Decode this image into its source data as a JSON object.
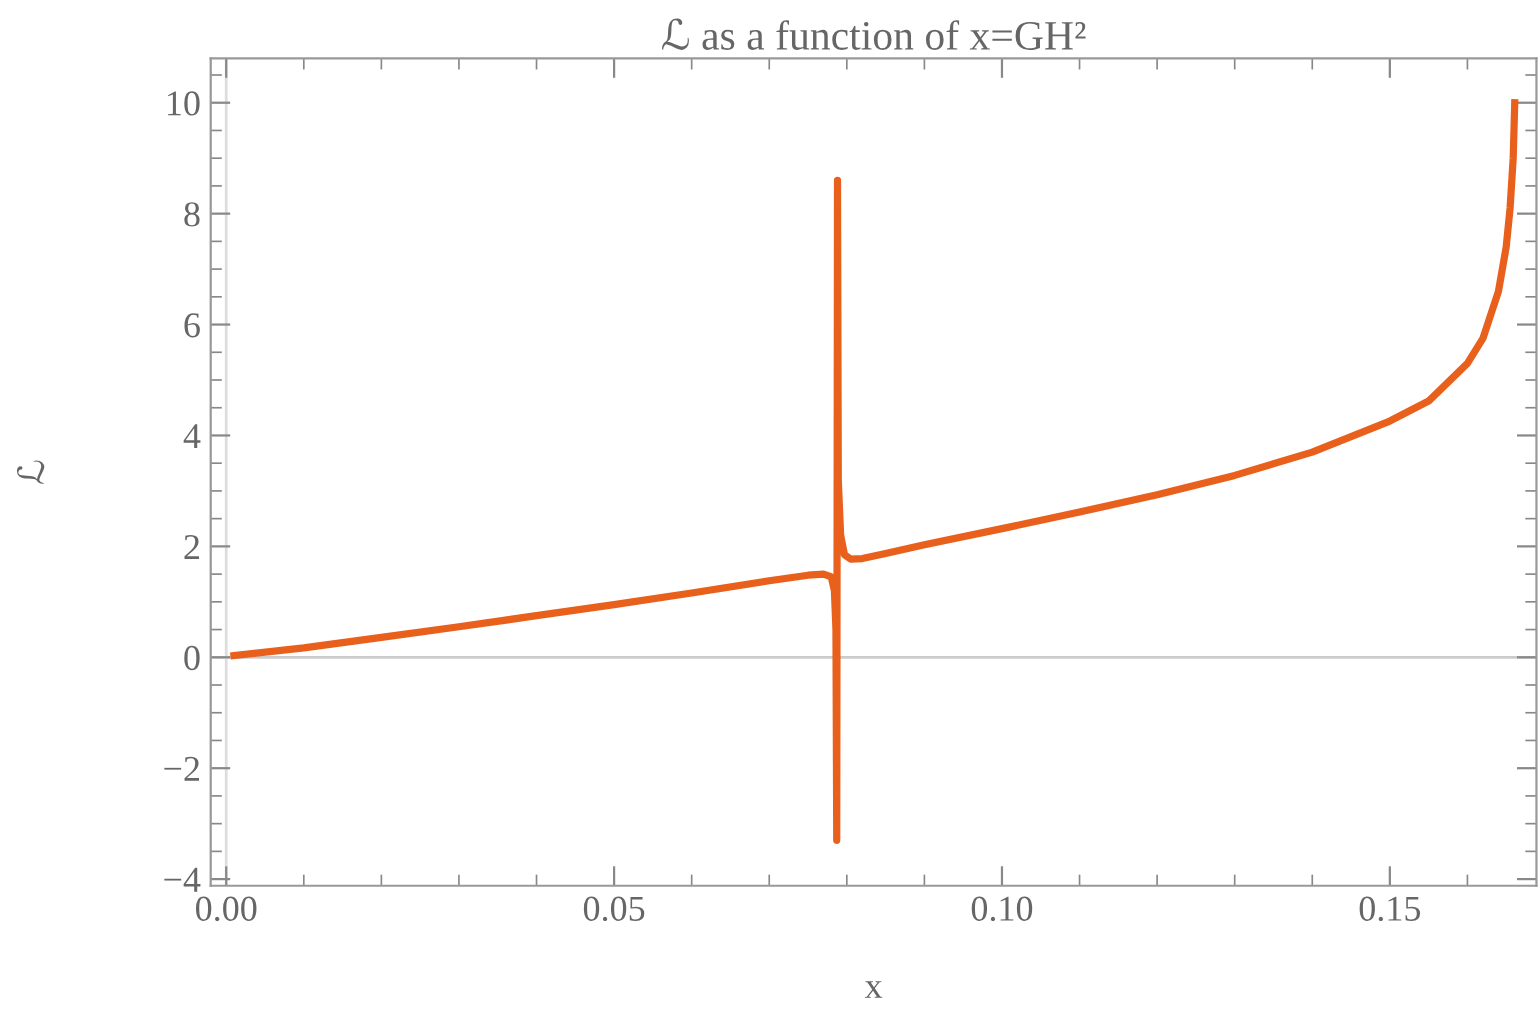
{
  "chart_data": {
    "type": "line",
    "title": "ℒ as a function of x=GH²",
    "xlabel": "x",
    "ylabel": "ℒ",
    "xlim": [
      -0.002,
      0.1689
    ],
    "ylim": [
      -4.12,
      10.8
    ],
    "xticks": [
      {
        "value": 0,
        "label": "0.00"
      },
      0.05,
      {
        "value": 0.1,
        "label": "0.10"
      },
      0.15
    ],
    "yticks": [
      -4,
      -2,
      0,
      2,
      4,
      6,
      8,
      10
    ],
    "grid": false,
    "legend": false,
    "marker": "none",
    "line_style": "solid",
    "ref_lines": [
      {
        "axis": "y",
        "value": 0,
        "color": "#cccccc"
      },
      {
        "axis": "x",
        "value": 0,
        "color": "#dddddd"
      }
    ],
    "series": [
      {
        "color": "#e8601c",
        "x": [
          0.001,
          0.01,
          0.02,
          0.03,
          0.04,
          0.05,
          0.06,
          0.07,
          0.075,
          0.077,
          0.078,
          0.0784,
          0.0786,
          0.0787,
          0.0788,
          0.0789,
          0.0792,
          0.0797,
          0.0805,
          0.082,
          0.085,
          0.09,
          0.1,
          0.11,
          0.12,
          0.13,
          0.14,
          0.15,
          0.155,
          0.16,
          0.162,
          0.164,
          0.165,
          0.1655,
          0.1659,
          0.1661
        ],
        "values": [
          0.03,
          0.17,
          0.36,
          0.55,
          0.75,
          0.95,
          1.16,
          1.38,
          1.48,
          1.5,
          1.45,
          1.2,
          0.5,
          -3.3,
          8.6,
          3.2,
          2.2,
          1.85,
          1.77,
          1.78,
          1.87,
          2.03,
          2.32,
          2.62,
          2.93,
          3.28,
          3.7,
          4.26,
          4.62,
          5.3,
          5.75,
          6.6,
          7.4,
          8.1,
          9.0,
          10.0
        ]
      }
    ]
  }
}
